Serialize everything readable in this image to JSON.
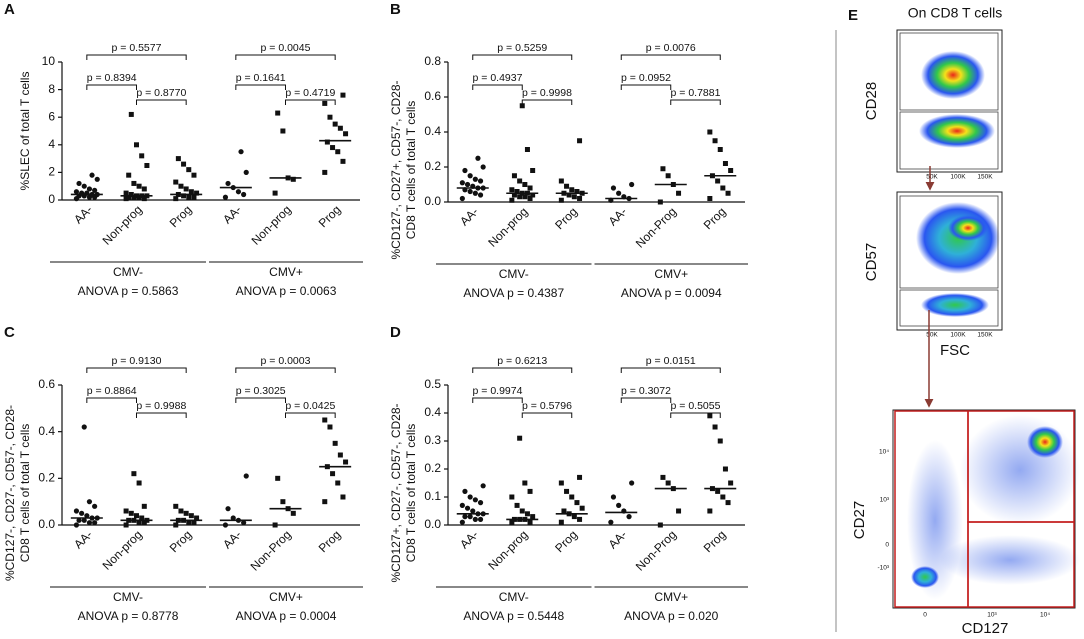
{
  "chart_data": [
    {
      "type": "strip",
      "panel": "A",
      "ylabel": [
        "%SLEC of total T cells"
      ],
      "categories": [
        "AA-",
        "Non-prog",
        "Prog",
        "AA-",
        "Non-prog",
        "Prog"
      ],
      "values": [
        [
          0.1,
          0.2,
          0.2,
          0.3,
          0.3,
          0.4,
          0.4,
          0.5,
          0.5,
          0.6,
          0.7,
          0.8,
          1.0,
          1.2,
          1.5,
          1.8
        ],
        [
          0.1,
          0.1,
          0.2,
          0.2,
          0.2,
          0.3,
          0.3,
          0.3,
          0.4,
          0.5,
          0.8,
          1.0,
          1.2,
          1.8,
          2.5,
          3.2,
          4.0,
          6.2
        ],
        [
          0.1,
          0.2,
          0.2,
          0.3,
          0.4,
          0.5,
          0.6,
          0.8,
          1.0,
          1.3,
          1.8,
          2.2,
          2.6,
          3.0
        ],
        [
          0.2,
          0.4,
          0.6,
          0.9,
          1.2,
          2.0,
          3.5
        ],
        [
          0.5,
          1.5,
          1.6,
          5.0,
          6.3
        ],
        [
          2.0,
          2.8,
          3.5,
          3.8,
          4.2,
          4.8,
          5.2,
          5.5,
          6.0,
          7.0,
          7.6
        ]
      ],
      "medians": [
        0.4,
        0.3,
        0.4,
        0.9,
        1.6,
        4.3
      ],
      "ylim": [
        0,
        10
      ],
      "yticks": [
        0,
        2,
        4,
        6,
        8,
        10
      ],
      "comparisons": [
        "p = 0.5577",
        "p = 0.8394",
        "p = 0.8770",
        "p = 0.0045",
        "p = 0.1641",
        "p = 0.4719"
      ],
      "groups": [
        "CMV-",
        "CMV+"
      ],
      "anova": [
        "ANOVA p =  0.5863",
        "ANOVA p = 0.0063"
      ]
    },
    {
      "type": "strip",
      "panel": "B",
      "ylabel": [
        "%CD127-, CD27+, CD57-, CD28-",
        "CD8 T cells of total T cells"
      ],
      "categories": [
        "AA-",
        "Non-prog",
        "Prog",
        "AA-",
        "Non-Prog",
        "Prog"
      ],
      "values": [
        [
          0.02,
          0.04,
          0.05,
          0.06,
          0.07,
          0.08,
          0.08,
          0.09,
          0.1,
          0.11,
          0.12,
          0.13,
          0.15,
          0.18,
          0.2,
          0.25
        ],
        [
          0.01,
          0.02,
          0.03,
          0.03,
          0.04,
          0.04,
          0.05,
          0.05,
          0.06,
          0.07,
          0.08,
          0.1,
          0.12,
          0.15,
          0.18,
          0.3,
          0.55
        ],
        [
          0.01,
          0.02,
          0.03,
          0.04,
          0.05,
          0.05,
          0.06,
          0.07,
          0.09,
          0.12,
          0.35
        ],
        [
          0.01,
          0.02,
          0.03,
          0.05,
          0.08,
          0.1
        ],
        [
          0.0,
          0.05,
          0.1,
          0.15,
          0.19
        ],
        [
          0.02,
          0.05,
          0.08,
          0.12,
          0.15,
          0.18,
          0.22,
          0.3,
          0.35,
          0.4
        ]
      ],
      "medians": [
        0.08,
        0.05,
        0.05,
        0.02,
        0.1,
        0.15
      ],
      "ylim": [
        0,
        0.8
      ],
      "yticks": [
        {
          "value": 0,
          "label": "0.0"
        },
        0.2,
        0.4,
        0.6,
        0.8
      ],
      "comparisons": [
        "p = 0.5259",
        "p = 0.4937",
        "p = 0.9998",
        "p = 0.0076",
        "p = 0.0952",
        "p = 0.7881"
      ],
      "groups": [
        "CMV-",
        "CMV+"
      ],
      "anova": [
        "ANOVA p =  0.4387",
        "ANOVA p = 0.0094"
      ]
    },
    {
      "type": "strip",
      "panel": "C",
      "ylabel": [
        "%CD127-, CD27-, CD57-, CD28-",
        "CD8 T cells of total T cells"
      ],
      "categories": [
        "AA-",
        "Non-prog",
        "Prog",
        "AA-",
        "Non-Prog",
        "Prog"
      ],
      "values": [
        [
          0.0,
          0.01,
          0.01,
          0.02,
          0.02,
          0.03,
          0.03,
          0.04,
          0.05,
          0.06,
          0.08,
          0.1,
          0.42
        ],
        [
          0.0,
          0.01,
          0.01,
          0.02,
          0.02,
          0.02,
          0.03,
          0.04,
          0.05,
          0.06,
          0.08,
          0.18,
          0.22
        ],
        [
          0.0,
          0.01,
          0.01,
          0.02,
          0.02,
          0.03,
          0.04,
          0.05,
          0.06,
          0.08
        ],
        [
          0.0,
          0.01,
          0.02,
          0.03,
          0.07,
          0.21
        ],
        [
          0.0,
          0.05,
          0.07,
          0.1,
          0.2
        ],
        [
          0.1,
          0.12,
          0.18,
          0.22,
          0.25,
          0.27,
          0.3,
          0.35,
          0.42,
          0.45
        ]
      ],
      "medians": [
        0.03,
        0.02,
        0.02,
        0.02,
        0.07,
        0.25
      ],
      "ylim": [
        0,
        0.6
      ],
      "yticks": [
        {
          "value": 0,
          "label": "0.0"
        },
        0.2,
        0.4,
        0.6
      ],
      "comparisons": [
        "p = 0.9130",
        "p = 0.8864",
        "p = 0.9988",
        "p = 0.0003",
        "p = 0.3025",
        "p = 0.0425"
      ],
      "groups": [
        "CMV-",
        "CMV+"
      ],
      "anova": [
        "ANOVA p =  0.8778",
        "ANOVA p = 0.0004"
      ]
    },
    {
      "type": "strip",
      "panel": "D",
      "ylabel": [
        "%CD127+, CD27-, CD57-, CD28-",
        "CD8 T cells of total  T cells"
      ],
      "categories": [
        "AA-",
        "Non-prog",
        "Prog",
        "AA-",
        "Non-Prog",
        "Prog"
      ],
      "values": [
        [
          0.01,
          0.02,
          0.02,
          0.03,
          0.03,
          0.04,
          0.04,
          0.05,
          0.06,
          0.07,
          0.08,
          0.09,
          0.1,
          0.12,
          0.14
        ],
        [
          0.01,
          0.01,
          0.02,
          0.02,
          0.02,
          0.03,
          0.04,
          0.05,
          0.07,
          0.1,
          0.12,
          0.15,
          0.31
        ],
        [
          0.01,
          0.02,
          0.03,
          0.04,
          0.05,
          0.06,
          0.08,
          0.1,
          0.12,
          0.15,
          0.17
        ],
        [
          0.01,
          0.03,
          0.05,
          0.07,
          0.1,
          0.15
        ],
        [
          0.0,
          0.05,
          0.13,
          0.15,
          0.17
        ],
        [
          0.05,
          0.08,
          0.1,
          0.12,
          0.13,
          0.15,
          0.2,
          0.3,
          0.35,
          0.39
        ]
      ],
      "medians": [
        0.04,
        0.02,
        0.04,
        0.045,
        0.13,
        0.13
      ],
      "ylim": [
        0,
        0.5
      ],
      "yticks": [
        {
          "value": 0,
          "label": "0.0"
        },
        0.1,
        0.2,
        0.3,
        0.4,
        0.5
      ],
      "comparisons": [
        "p = 0.6213",
        "p = 0.9974",
        "p = 0.5796",
        "p = 0.0151",
        "p = 0.3072",
        "p = 0.5055"
      ],
      "groups": [
        "CMV-",
        "CMV+"
      ],
      "anova": [
        "ANOVA p =  0.5448",
        "ANOVA p = 0.020"
      ]
    }
  ],
  "flow": {
    "panel": "E",
    "title": "On CD8 T cells",
    "plots": [
      {
        "ylabel": "CD28",
        "xticks": [
          "50K",
          "100K",
          "150K"
        ]
      },
      {
        "ylabel": "CD57",
        "xlabel": "FSC",
        "xticks": [
          "50K",
          "100K",
          "150K"
        ]
      },
      {
        "ylabel": "CD27",
        "xlabel": "CD127",
        "xticks": [
          "0",
          "10³",
          "10⁴"
        ],
        "yticks": [
          "10⁴",
          "10³",
          "0",
          "-10³"
        ]
      }
    ]
  }
}
